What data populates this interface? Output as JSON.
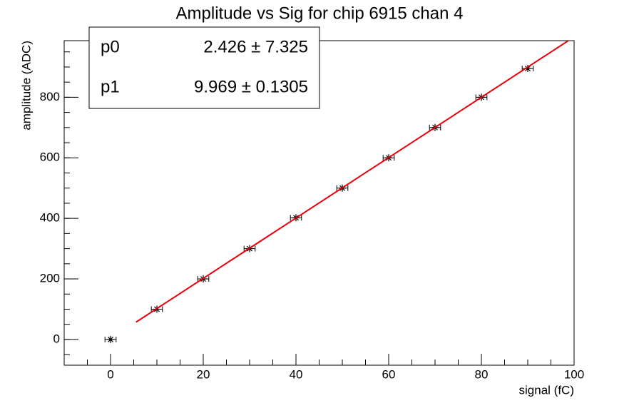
{
  "chart_data": {
    "type": "scatter",
    "title": "Amplitude vs Sig for chip 6915 chan 4",
    "xlabel": "signal (fC)",
    "ylabel": "amplitude (ADC)",
    "series": [
      {
        "name": "data",
        "color": "#000000",
        "x": [
          0,
          10,
          20,
          30,
          40,
          50,
          60,
          70,
          80,
          90
        ],
        "values": [
          0,
          100,
          200,
          300,
          402,
          500,
          600,
          700,
          800,
          895
        ],
        "xerr": [
          1.2,
          1.2,
          1.2,
          1.2,
          1.2,
          1.2,
          1.2,
          1.2,
          1.2,
          1.2
        ]
      }
    ],
    "fit": [
      {
        "name": "p0",
        "value": 2.426,
        "error": 7.325,
        "label": "2.426 ± 7.325"
      },
      {
        "name": "p1",
        "value": 9.969,
        "error": 0.1305,
        "label": "9.969 ± 0.1305"
      }
    ],
    "fit_range": [
      5.5,
      100
    ],
    "fit_color": "#e8000b",
    "xlim": [
      -10,
      100
    ],
    "ylim": [
      -85,
      987
    ],
    "xticks": [
      0,
      20,
      40,
      60,
      80,
      100
    ],
    "yticks": [
      0,
      200,
      400,
      600,
      800
    ],
    "xminor": 5,
    "yminor": 50
  }
}
